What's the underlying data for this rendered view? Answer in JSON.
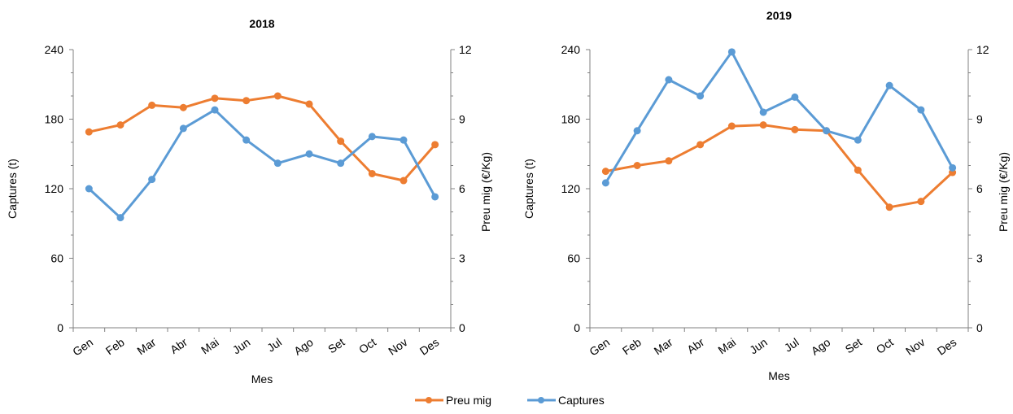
{
  "chart_data": [
    {
      "type": "line",
      "title": "2018",
      "xlabel": "Mes",
      "ylabel": "Captures (t)",
      "y2label": "Preu mig (€/Kg)",
      "categories": [
        "Gen",
        "Feb",
        "Mar",
        "Abr",
        "Mai",
        "Jun",
        "Jul",
        "Ago",
        "Set",
        "Oct",
        "Nov",
        "Des"
      ],
      "ylim": [
        0,
        240
      ],
      "y2lim": [
        0,
        12
      ],
      "yticks": [
        "0",
        "60",
        "120",
        "180",
        "240"
      ],
      "y2ticks": [
        "0",
        "3",
        "6",
        "9",
        "12"
      ],
      "series": [
        {
          "name": "Preu mig",
          "axis": "right",
          "color": "#ed7d31",
          "values": [
            8.45,
            8.75,
            9.6,
            9.5,
            9.9,
            9.8,
            10.0,
            9.65,
            8.05,
            6.65,
            6.35,
            7.9
          ]
        },
        {
          "name": "Captures",
          "axis": "left",
          "color": "#5b9bd5",
          "values": [
            120,
            95,
            128,
            172,
            188,
            162,
            142,
            150,
            142,
            165,
            162,
            113
          ]
        }
      ]
    },
    {
      "type": "line",
      "title": "2019",
      "xlabel": "Mes",
      "ylabel": "Captures (t)",
      "y2label": "Preu mig (€/Kg)",
      "categories": [
        "Gen",
        "Feb",
        "Mar",
        "Abr",
        "Mai",
        "Jun",
        "Jul",
        "Ago",
        "Set",
        "Oct",
        "Nov",
        "Des"
      ],
      "ylim": [
        0,
        240
      ],
      "y2lim": [
        0,
        12
      ],
      "yticks": [
        "0",
        "60",
        "120",
        "180",
        "240"
      ],
      "y2ticks": [
        "0",
        "3",
        "6",
        "9",
        "12"
      ],
      "series": [
        {
          "name": "Preu mig",
          "axis": "right",
          "color": "#ed7d31",
          "values": [
            6.75,
            7.0,
            7.2,
            7.9,
            8.7,
            8.75,
            8.55,
            8.5,
            6.8,
            5.2,
            5.45,
            6.7
          ]
        },
        {
          "name": "Captures",
          "axis": "left",
          "color": "#5b9bd5",
          "values": [
            125,
            170,
            214,
            200,
            238,
            186,
            199,
            170,
            162,
            209,
            188,
            138
          ]
        }
      ]
    }
  ],
  "legend": [
    {
      "label": "Preu mig",
      "color": "#ed7d31"
    },
    {
      "label": "Captures",
      "color": "#5b9bd5"
    }
  ]
}
